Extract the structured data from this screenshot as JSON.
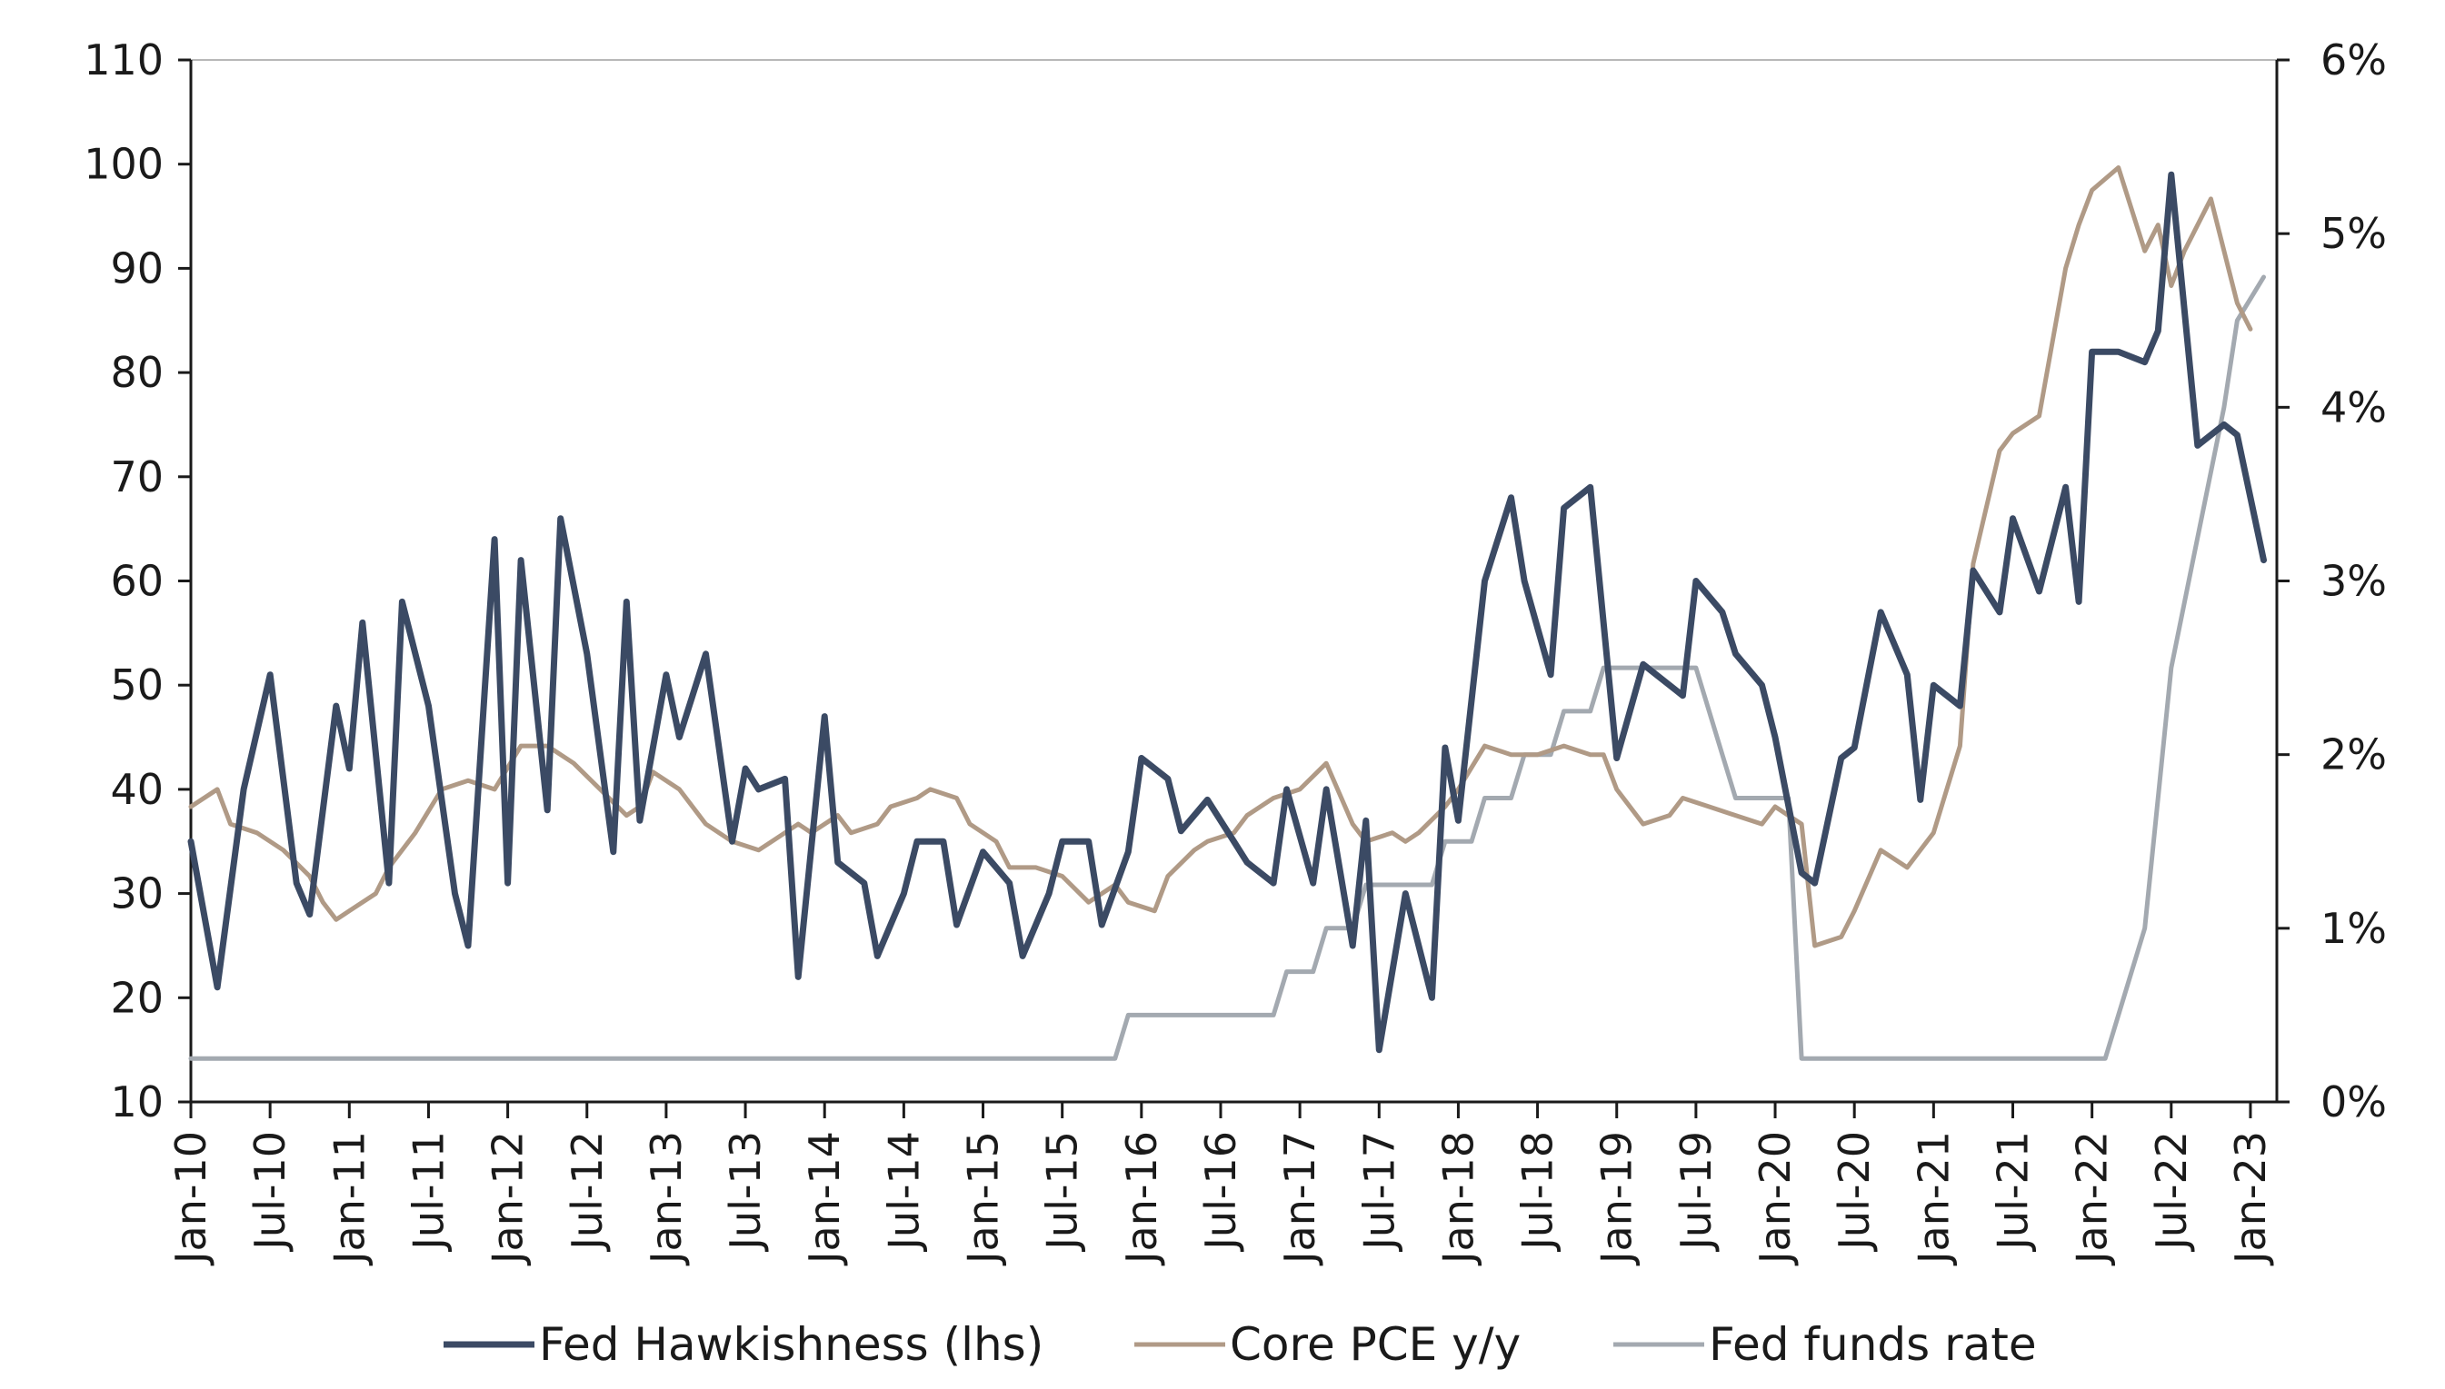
{
  "chart_data": {
    "type": "line",
    "title": "",
    "xlabel": "",
    "ylabel_left": "",
    "ylabel_right": "",
    "ylim_left": [
      10,
      110
    ],
    "ylim_right": [
      0,
      6
    ],
    "yticks_left": [
      "10",
      "20",
      "30",
      "40",
      "50",
      "60",
      "70",
      "80",
      "90",
      "100",
      "110"
    ],
    "yticks_right": [
      "0%",
      "1%",
      "2%",
      "3%",
      "4%",
      "5%",
      "6%"
    ],
    "x_tick_labels": [
      "Jan-10",
      "Jul-10",
      "Jan-11",
      "Jul-11",
      "Jan-12",
      "Jul-12",
      "Jan-13",
      "Jul-13",
      "Jan-14",
      "Jul-14",
      "Jan-15",
      "Jul-15",
      "Jan-16",
      "Jul-16",
      "Jan-17",
      "Jul-17",
      "Jan-18",
      "Jul-18",
      "Jan-19",
      "Jul-19",
      "Jan-20",
      "Jul-20",
      "Jan-21",
      "Jul-21",
      "Jan-22",
      "Jul-22",
      "Jan-23"
    ],
    "x_range": [
      "Jan-10",
      "Mar-23"
    ],
    "grid": false,
    "legend_position": "bottom",
    "series": [
      {
        "name": "Fed Hawkishness (lhs)",
        "axis": "left",
        "color": "#3b4a64",
        "points": [
          [
            "Jan-10",
            35
          ],
          [
            "Mar-10",
            21
          ],
          [
            "May-10",
            40
          ],
          [
            "Jul-10",
            51
          ],
          [
            "Sep-10",
            31
          ],
          [
            "Oct-10",
            28
          ],
          [
            "Dec-10",
            48
          ],
          [
            "Jan-11",
            42
          ],
          [
            "Feb-11",
            56
          ],
          [
            "Apr-11",
            31
          ],
          [
            "May-11",
            58
          ],
          [
            "Jul-11",
            48
          ],
          [
            "Sep-11",
            30
          ],
          [
            "Oct-11",
            25
          ],
          [
            "Dec-11",
            64
          ],
          [
            "Jan-12",
            31
          ],
          [
            "Feb-12",
            62
          ],
          [
            "Apr-12",
            38
          ],
          [
            "May-12",
            66
          ],
          [
            "Jul-12",
            53
          ],
          [
            "Sep-12",
            34
          ],
          [
            "Oct-12",
            58
          ],
          [
            "Nov-12",
            37
          ],
          [
            "Jan-13",
            51
          ],
          [
            "Feb-13",
            45
          ],
          [
            "Apr-13",
            53
          ],
          [
            "Jun-13",
            35
          ],
          [
            "Jul-13",
            42
          ],
          [
            "Aug-13",
            40
          ],
          [
            "Oct-13",
            41
          ],
          [
            "Nov-13",
            22
          ],
          [
            "Jan-14",
            47
          ],
          [
            "Feb-14",
            33
          ],
          [
            "Apr-14",
            31
          ],
          [
            "May-14",
            24
          ],
          [
            "Jul-14",
            30
          ],
          [
            "Aug-14",
            35
          ],
          [
            "Oct-14",
            35
          ],
          [
            "Nov-14",
            27
          ],
          [
            "Jan-15",
            34
          ],
          [
            "Mar-15",
            31
          ],
          [
            "Apr-15",
            24
          ],
          [
            "Jun-15",
            30
          ],
          [
            "Jul-15",
            35
          ],
          [
            "Sep-15",
            35
          ],
          [
            "Oct-15",
            27
          ],
          [
            "Dec-15",
            34
          ],
          [
            "Jan-16",
            43
          ],
          [
            "Mar-16",
            41
          ],
          [
            "Apr-16",
            36
          ],
          [
            "Jun-16",
            39
          ],
          [
            "Aug-16",
            35
          ],
          [
            "Sep-16",
            33
          ],
          [
            "Nov-16",
            31
          ],
          [
            "Dec-16",
            40
          ],
          [
            "Feb-17",
            31
          ],
          [
            "Mar-17",
            40
          ],
          [
            "May-17",
            25
          ],
          [
            "Jun-17",
            37
          ],
          [
            "Jul-17",
            15
          ],
          [
            "Sep-17",
            30
          ],
          [
            "Nov-17",
            20
          ],
          [
            "Dec-17",
            44
          ],
          [
            "Jan-18",
            37
          ],
          [
            "Mar-18",
            60
          ],
          [
            "May-18",
            68
          ],
          [
            "Jun-18",
            60
          ],
          [
            "Aug-18",
            51
          ],
          [
            "Sep-18",
            67
          ],
          [
            "Nov-18",
            69
          ],
          [
            "Jan-19",
            43
          ],
          [
            "Mar-19",
            52
          ],
          [
            "Apr-19",
            51
          ],
          [
            "Jun-19",
            49
          ],
          [
            "Jul-19",
            60
          ],
          [
            "Sep-19",
            57
          ],
          [
            "Oct-19",
            53
          ],
          [
            "Dec-19",
            50
          ],
          [
            "Jan-20",
            45
          ],
          [
            "Mar-20",
            32
          ],
          [
            "Apr-20",
            31
          ],
          [
            "Jun-20",
            43
          ],
          [
            "Jul-20",
            44
          ],
          [
            "Sep-20",
            57
          ],
          [
            "Nov-20",
            51
          ],
          [
            "Dec-20",
            39
          ],
          [
            "Jan-21",
            50
          ],
          [
            "Mar-21",
            48
          ],
          [
            "Apr-21",
            61
          ],
          [
            "Jun-21",
            57
          ],
          [
            "Jul-21",
            66
          ],
          [
            "Sep-21",
            59
          ],
          [
            "Nov-21",
            69
          ],
          [
            "Dec-21",
            58
          ],
          [
            "Jan-22",
            82
          ],
          [
            "Mar-22",
            82
          ],
          [
            "May-22",
            81
          ],
          [
            "Jun-22",
            84
          ],
          [
            "Jul-22",
            99
          ],
          [
            "Sep-22",
            73
          ],
          [
            "Nov-22",
            75
          ],
          [
            "Dec-22",
            74
          ],
          [
            "Feb-23",
            62
          ]
        ]
      },
      {
        "name": "Core PCE y/y",
        "axis": "right",
        "color": "#b09a86",
        "points": [
          [
            "Jan-10",
            1.7
          ],
          [
            "Mar-10",
            1.8
          ],
          [
            "Apr-10",
            1.6
          ],
          [
            "Jun-10",
            1.55
          ],
          [
            "Aug-10",
            1.45
          ],
          [
            "Oct-10",
            1.3
          ],
          [
            "Nov-10",
            1.15
          ],
          [
            "Dec-10",
            1.05
          ],
          [
            "Jan-11",
            1.1
          ],
          [
            "Mar-11",
            1.2
          ],
          [
            "Apr-11",
            1.35
          ],
          [
            "Jun-11",
            1.55
          ],
          [
            "Aug-11",
            1.8
          ],
          [
            "Oct-11",
            1.85
          ],
          [
            "Dec-11",
            1.8
          ],
          [
            "Feb-12",
            2.05
          ],
          [
            "Apr-12",
            2.05
          ],
          [
            "Jun-12",
            1.95
          ],
          [
            "Aug-12",
            1.8
          ],
          [
            "Oct-12",
            1.65
          ],
          [
            "Nov-12",
            1.7
          ],
          [
            "Dec-12",
            1.9
          ],
          [
            "Feb-13",
            1.8
          ],
          [
            "Apr-13",
            1.6
          ],
          [
            "Jun-13",
            1.5
          ],
          [
            "Aug-13",
            1.45
          ],
          [
            "Sep-13",
            1.5
          ],
          [
            "Nov-13",
            1.6
          ],
          [
            "Dec-13",
            1.55
          ],
          [
            "Feb-14",
            1.65
          ],
          [
            "Mar-14",
            1.55
          ],
          [
            "May-14",
            1.6
          ],
          [
            "Jun-14",
            1.7
          ],
          [
            "Aug-14",
            1.75
          ],
          [
            "Sep-14",
            1.8
          ],
          [
            "Nov-14",
            1.75
          ],
          [
            "Dec-14",
            1.6
          ],
          [
            "Feb-15",
            1.5
          ],
          [
            "Mar-15",
            1.35
          ],
          [
            "May-15",
            1.35
          ],
          [
            "Jul-15",
            1.3
          ],
          [
            "Sep-15",
            1.15
          ],
          [
            "Nov-15",
            1.25
          ],
          [
            "Dec-15",
            1.15
          ],
          [
            "Feb-16",
            1.1
          ],
          [
            "Mar-16",
            1.3
          ],
          [
            "May-16",
            1.45
          ],
          [
            "Jun-16",
            1.5
          ],
          [
            "Aug-16",
            1.55
          ],
          [
            "Sep-16",
            1.65
          ],
          [
            "Nov-16",
            1.75
          ],
          [
            "Jan-17",
            1.8
          ],
          [
            "Mar-17",
            1.95
          ],
          [
            "May-17",
            1.6
          ],
          [
            "Jun-17",
            1.5
          ],
          [
            "Aug-17",
            1.55
          ],
          [
            "Sep-17",
            1.5
          ],
          [
            "Oct-17",
            1.55
          ],
          [
            "Dec-17",
            1.7
          ],
          [
            "Jan-18",
            1.8
          ],
          [
            "Mar-18",
            2.05
          ],
          [
            "May-18",
            2.0
          ],
          [
            "Jul-18",
            2.0
          ],
          [
            "Sep-18",
            2.05
          ],
          [
            "Nov-18",
            2.0
          ],
          [
            "Dec-18",
            2.0
          ],
          [
            "Jan-19",
            1.8
          ],
          [
            "Mar-19",
            1.6
          ],
          [
            "May-19",
            1.65
          ],
          [
            "Jun-19",
            1.75
          ],
          [
            "Aug-19",
            1.7
          ],
          [
            "Oct-19",
            1.65
          ],
          [
            "Dec-19",
            1.6
          ],
          [
            "Jan-20",
            1.7
          ],
          [
            "Mar-20",
            1.6
          ],
          [
            "Apr-20",
            0.9
          ],
          [
            "Jun-20",
            0.95
          ],
          [
            "Jul-20",
            1.1
          ],
          [
            "Sep-20",
            1.45
          ],
          [
            "Nov-20",
            1.35
          ],
          [
            "Dec-20",
            1.45
          ],
          [
            "Jan-21",
            1.55
          ],
          [
            "Mar-21",
            2.05
          ],
          [
            "Apr-21",
            3.1
          ],
          [
            "Jun-21",
            3.75
          ],
          [
            "Jul-21",
            3.85
          ],
          [
            "Sep-21",
            3.95
          ],
          [
            "Nov-21",
            4.8
          ],
          [
            "Dec-21",
            5.05
          ],
          [
            "Jan-22",
            5.25
          ],
          [
            "Mar-22",
            5.38
          ],
          [
            "May-22",
            4.9
          ],
          [
            "Jun-22",
            5.05
          ],
          [
            "Jul-22",
            4.7
          ],
          [
            "Aug-22",
            4.9
          ],
          [
            "Oct-22",
            5.2
          ],
          [
            "Dec-22",
            4.6
          ],
          [
            "Jan-23",
            4.45
          ]
        ]
      },
      {
        "name": "Fed funds rate",
        "axis": "right",
        "color": "#a3a9b0",
        "points": [
          [
            "Jan-10",
            0.25
          ],
          [
            "Nov-15",
            0.25
          ],
          [
            "Dec-15",
            0.5
          ],
          [
            "Nov-16",
            0.5
          ],
          [
            "Dec-16",
            0.75
          ],
          [
            "Feb-17",
            0.75
          ],
          [
            "Mar-17",
            1.0
          ],
          [
            "May-17",
            1.0
          ],
          [
            "Jun-17",
            1.25
          ],
          [
            "Nov-17",
            1.25
          ],
          [
            "Dec-17",
            1.5
          ],
          [
            "Feb-18",
            1.5
          ],
          [
            "Mar-18",
            1.75
          ],
          [
            "May-18",
            1.75
          ],
          [
            "Jun-18",
            2.0
          ],
          [
            "Aug-18",
            2.0
          ],
          [
            "Sep-18",
            2.25
          ],
          [
            "Nov-18",
            2.25
          ],
          [
            "Dec-18",
            2.5
          ],
          [
            "Jul-19",
            2.5
          ],
          [
            "Aug-19",
            2.25
          ],
          [
            "Sep-19",
            2.0
          ],
          [
            "Oct-19",
            1.75
          ],
          [
            "Jan-20",
            1.75
          ],
          [
            "Feb-20",
            1.75
          ],
          [
            "Mar-20",
            0.25
          ],
          [
            "Jan-22",
            0.25
          ],
          [
            "Feb-22",
            0.25
          ],
          [
            "Mar-22",
            0.5
          ],
          [
            "May-22",
            1.0
          ],
          [
            "Jun-22",
            1.75
          ],
          [
            "Jul-22",
            2.5
          ],
          [
            "Sep-22",
            3.25
          ],
          [
            "Nov-22",
            4.0
          ],
          [
            "Dec-22",
            4.5
          ],
          [
            "Feb-23",
            4.75
          ]
        ]
      }
    ]
  }
}
